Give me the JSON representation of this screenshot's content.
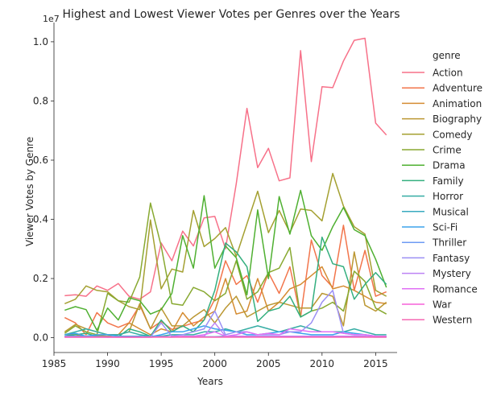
{
  "chart_data": {
    "type": "line",
    "title": "Highest and Lowest Viewer Votes per Genres over the Years",
    "xlabel": "Years",
    "ylabel": "Viewer Votes by Genre",
    "offset_text": "1e7",
    "xlim": [
      1985,
      2017
    ],
    "ylim": [
      -0.05,
      1.065
    ],
    "xticks": [
      1985,
      1990,
      1995,
      2000,
      2005,
      2010,
      2015
    ],
    "yticks": [
      0.0,
      0.2,
      0.4,
      0.6,
      0.8,
      1.0
    ],
    "ytick_labels": [
      "0.0",
      "0.2",
      "0.4",
      "0.6",
      "0.8",
      "1.0"
    ],
    "x": [
      1986,
      1987,
      1988,
      1989,
      1990,
      1991,
      1992,
      1993,
      1994,
      1995,
      1996,
      1997,
      1998,
      1999,
      2000,
      2001,
      2002,
      2003,
      2004,
      2005,
      2006,
      2007,
      2008,
      2009,
      2010,
      2011,
      2012,
      2013,
      2014,
      2015,
      2016
    ],
    "legend_title": "genre",
    "legend_position": "right",
    "grid": false,
    "series": [
      {
        "name": "Action",
        "color": "#f77189",
        "values": [
          0.142,
          0.145,
          0.14,
          0.175,
          0.16,
          0.183,
          0.14,
          0.13,
          0.155,
          0.32,
          0.26,
          0.36,
          0.31,
          0.405,
          0.41,
          0.3,
          0.52,
          0.775,
          0.575,
          0.64,
          0.53,
          0.54,
          0.97,
          0.595,
          0.848,
          0.845,
          0.935,
          1.005,
          1.012,
          0.725,
          0.685
        ]
      },
      {
        "name": "Adventure",
        "color": "#f2754b",
        "values": [
          0.068,
          0.05,
          0.01,
          0.085,
          0.05,
          0.035,
          0.05,
          0.11,
          0.03,
          0.055,
          0.028,
          0.038,
          0.05,
          0.06,
          0.13,
          0.26,
          0.18,
          0.21,
          0.12,
          0.22,
          0.15,
          0.24,
          0.07,
          0.33,
          0.21,
          0.17,
          0.38,
          0.16,
          0.295,
          0.14,
          0.155
        ]
      },
      {
        "name": "Animation",
        "color": "#d58c32",
        "values": [
          0.01,
          0.01,
          0.005,
          0.008,
          0.005,
          0.01,
          0.05,
          0.03,
          0.01,
          0.03,
          0.02,
          0.085,
          0.04,
          0.07,
          0.09,
          0.2,
          0.08,
          0.09,
          0.2,
          0.09,
          0.12,
          0.165,
          0.18,
          0.21,
          0.24,
          0.165,
          0.175,
          0.16,
          0.14,
          0.12,
          0.115
        ]
      },
      {
        "name": "Biography",
        "color": "#bb9732",
        "values": [
          0.02,
          0.045,
          0.03,
          0.02,
          0.01,
          0.01,
          0.02,
          0.115,
          0.03,
          0.1,
          0.04,
          0.04,
          0.07,
          0.095,
          0.05,
          0.1,
          0.14,
          0.07,
          0.09,
          0.11,
          0.12,
          0.11,
          0.1,
          0.1,
          0.15,
          0.14,
          0.04,
          0.29,
          0.11,
          0.09,
          0.12
        ]
      },
      {
        "name": "Comedy",
        "color": "#a4a031",
        "values": [
          0.115,
          0.13,
          0.175,
          0.16,
          0.155,
          0.125,
          0.105,
          0.095,
          0.398,
          0.165,
          0.232,
          0.222,
          0.43,
          0.308,
          0.335,
          0.372,
          0.275,
          0.385,
          0.495,
          0.355,
          0.43,
          0.355,
          0.435,
          0.43,
          0.395,
          0.555,
          0.445,
          0.375,
          0.35,
          0.16,
          0.14
        ]
      },
      {
        "name": "Crime",
        "color": "#88a931",
        "values": [
          0.015,
          0.04,
          0.02,
          0.01,
          0.15,
          0.125,
          0.12,
          0.205,
          0.455,
          0.31,
          0.115,
          0.11,
          0.17,
          0.155,
          0.125,
          0.15,
          0.26,
          0.13,
          0.155,
          0.22,
          0.235,
          0.305,
          0.07,
          0.09,
          0.1,
          0.12,
          0.09,
          0.225,
          0.19,
          0.1,
          0.08
        ]
      },
      {
        "name": "Drama",
        "color": "#4fb031",
        "values": [
          0.093,
          0.105,
          0.095,
          0.025,
          0.1,
          0.06,
          0.135,
          0.125,
          0.08,
          0.095,
          0.15,
          0.345,
          0.235,
          0.48,
          0.235,
          0.31,
          0.27,
          0.145,
          0.432,
          0.2,
          0.477,
          0.35,
          0.498,
          0.345,
          0.295,
          0.375,
          0.44,
          0.365,
          0.345,
          0.265,
          0.17
        ]
      },
      {
        "name": "Family",
        "color": "#34af7f",
        "values": [
          0.005,
          0.01,
          0.015,
          0.005,
          0.002,
          0.003,
          0.03,
          0.02,
          0.005,
          0.06,
          0.02,
          0.04,
          0.02,
          0.06,
          0.16,
          0.32,
          0.29,
          0.24,
          0.055,
          0.09,
          0.1,
          0.14,
          0.07,
          0.09,
          0.34,
          0.25,
          0.24,
          0.13,
          0.18,
          0.22,
          0.18
        ]
      },
      {
        "name": "Horror",
        "color": "#36ada4",
        "values": [
          0.01,
          0.02,
          0.03,
          0.02,
          0.01,
          0.01,
          0.02,
          0.01,
          0.005,
          0.005,
          0.01,
          0.01,
          0.01,
          0.02,
          0.02,
          0.03,
          0.02,
          0.03,
          0.04,
          0.03,
          0.02,
          0.03,
          0.04,
          0.03,
          0.02,
          0.02,
          0.02,
          0.03,
          0.02,
          0.01,
          0.01
        ]
      },
      {
        "name": "Musical",
        "color": "#38aabf",
        "values": [
          0.005,
          0.005,
          0.005,
          0.003,
          0.003,
          0.002,
          0.002,
          0.002,
          0.002,
          0.003,
          0.002,
          0.003,
          0.002,
          0.003,
          0.003,
          0.005,
          0.004,
          0.003,
          0.003,
          0.005,
          0.004,
          0.004,
          0.003,
          0.004,
          0.003,
          0.004,
          0.003,
          0.003,
          0.003,
          0.002,
          0.002
        ]
      },
      {
        "name": "Sci-Fi",
        "color": "#3ba3ec",
        "values": [
          0.01,
          0.015,
          0.005,
          0.01,
          0.01,
          0.005,
          0.005,
          0.005,
          0.003,
          0.01,
          0.02,
          0.02,
          0.03,
          0.04,
          0.03,
          0.025,
          0.02,
          0.01,
          0.01,
          0.015,
          0.02,
          0.02,
          0.015,
          0.01,
          0.01,
          0.01,
          0.02,
          0.015,
          0.01,
          0.005,
          0.005
        ]
      },
      {
        "name": "Thriller",
        "color": "#6e9bf4",
        "values": [
          0.005,
          0.005,
          0.003,
          0.003,
          0.003,
          0.003,
          0.003,
          0.003,
          0.003,
          0.003,
          0.003,
          0.003,
          0.003,
          0.003,
          0.003,
          0.003,
          0.003,
          0.003,
          0.003,
          0.003,
          0.003,
          0.003,
          0.003,
          0.003,
          0.003,
          0.003,
          0.003,
          0.003,
          0.003,
          0.003,
          0.003
        ]
      },
      {
        "name": "Fantasy",
        "color": "#9b8ff4",
        "values": [
          0.002,
          0.002,
          0.002,
          0.002,
          0.002,
          0.002,
          0.002,
          0.002,
          0.002,
          0.05,
          0.005,
          0.01,
          0.02,
          0.03,
          0.09,
          0.01,
          0.02,
          0.02,
          0.01,
          0.01,
          0.01,
          0.02,
          0.02,
          0.05,
          0.12,
          0.16,
          0.015,
          0.01,
          0.01,
          0.005,
          0.005
        ]
      },
      {
        "name": "Mystery",
        "color": "#bd82f4",
        "values": [
          0.003,
          0.003,
          0.003,
          0.003,
          0.002,
          0.002,
          0.002,
          0.002,
          0.002,
          0.003,
          0.003,
          0.003,
          0.003,
          0.005,
          0.05,
          0.005,
          0.005,
          0.005,
          0.005,
          0.005,
          0.005,
          0.005,
          0.005,
          0.005,
          0.005,
          0.005,
          0.005,
          0.005,
          0.005,
          0.003,
          0.003
        ]
      },
      {
        "name": "Romance",
        "color": "#e06ff4",
        "values": [
          0.002,
          0.002,
          0.002,
          0.002,
          0.002,
          0.002,
          0.002,
          0.002,
          0.002,
          0.003,
          0.003,
          0.005,
          0.005,
          0.01,
          0.02,
          0.005,
          0.01,
          0.02,
          0.01,
          0.015,
          0.01,
          0.03,
          0.025,
          0.02,
          0.02,
          0.02,
          0.015,
          0.01,
          0.01,
          0.005,
          0.005
        ]
      },
      {
        "name": "War",
        "color": "#f562d9",
        "values": [
          0.002,
          0.002,
          0.002,
          0.002,
          0.002,
          0.002,
          0.002,
          0.002,
          0.002,
          0.002,
          0.002,
          0.002,
          0.002,
          0.002,
          0.002,
          0.002,
          0.002,
          0.002,
          0.002,
          0.002,
          0.002,
          0.002,
          0.002,
          0.002,
          0.002,
          0.002,
          0.002,
          0.002,
          0.002,
          0.002,
          0.002
        ]
      },
      {
        "name": "Western",
        "color": "#f668b3",
        "values": [
          0.002,
          0.002,
          0.002,
          0.002,
          0.002,
          0.002,
          0.002,
          0.002,
          0.002,
          0.002,
          0.002,
          0.002,
          0.002,
          0.002,
          0.002,
          0.002,
          0.002,
          0.002,
          0.002,
          0.002,
          0.002,
          0.002,
          0.002,
          0.002,
          0.002,
          0.002,
          0.002,
          0.002,
          0.002,
          0.002,
          0.002
        ]
      }
    ]
  }
}
